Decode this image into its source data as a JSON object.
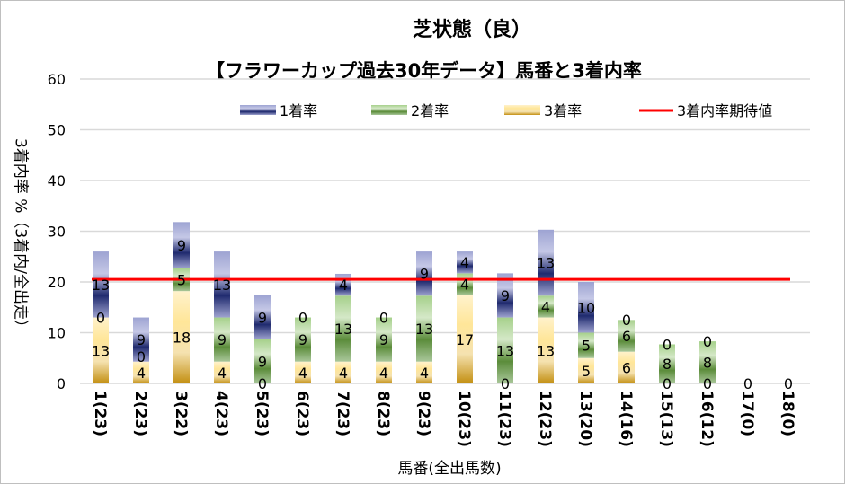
{
  "chart_data": {
    "type": "bar",
    "stacked": true,
    "title": "芝状態（良）",
    "subtitle": "【フラワーカップ過去30年データ】馬番と3着内率",
    "xlabel": "馬番(全出馬数)",
    "ylabel": "3着内率 %（3着内/全出走）",
    "ylim": [
      0,
      60
    ],
    "yticks": [
      0,
      10,
      20,
      30,
      40,
      50,
      60
    ],
    "grid": true,
    "legend": "top",
    "categories": [
      "1(23)",
      "2(23)",
      "3(22)",
      "4(23)",
      "5(23)",
      "6(23)",
      "7(23)",
      "8(23)",
      "9(23)",
      "10(23)",
      "11(23)",
      "12(23)",
      "13(20)",
      "14(16)",
      "15(13)",
      "16(12)",
      "17(0)",
      "18(0)"
    ],
    "series": [
      {
        "name": "3着率",
        "color": "#c9961a",
        "values": [
          13.0,
          4.3,
          18.2,
          4.3,
          0,
          4.3,
          4.3,
          4.3,
          4.3,
          17.4,
          0,
          13.0,
          5.0,
          6.25,
          0,
          0,
          0,
          0
        ]
      },
      {
        "name": "2着率",
        "color": "#5e8f3a",
        "values": [
          0,
          0,
          4.5,
          8.7,
          8.7,
          8.7,
          13.0,
          8.7,
          13.0,
          4.3,
          13.0,
          4.3,
          5.0,
          6.25,
          7.7,
          8.3,
          0,
          0
        ]
      },
      {
        "name": "1着率",
        "color": "#2e3a8c",
        "values": [
          13.0,
          8.7,
          9.1,
          13.0,
          8.7,
          0,
          4.3,
          0,
          8.7,
          4.3,
          8.7,
          13.0,
          10.0,
          0,
          0,
          0,
          0,
          0
        ]
      }
    ],
    "labels": {
      "3着率": [
        "13",
        "4",
        "18",
        "4",
        "0",
        "4",
        "4",
        "4",
        "4",
        "17",
        "0",
        "13",
        "5",
        "6",
        "0",
        "0",
        "0",
        "0"
      ],
      "2着率": [
        "0",
        "0",
        "5",
        "9",
        "9",
        "9",
        "13",
        "9",
        "13",
        "4",
        "13",
        "4",
        "5",
        "6",
        "8",
        "8",
        "",
        ""
      ],
      "1着率": [
        "13",
        "9",
        "9",
        "13",
        "9",
        "0",
        "4",
        "0",
        "9",
        "4",
        "9",
        "13",
        "10",
        "0",
        "0",
        "0",
        "",
        ""
      ]
    },
    "reference_line": {
      "name": "3着内率期待値",
      "value": 20.5,
      "color": "#ff0000"
    }
  }
}
